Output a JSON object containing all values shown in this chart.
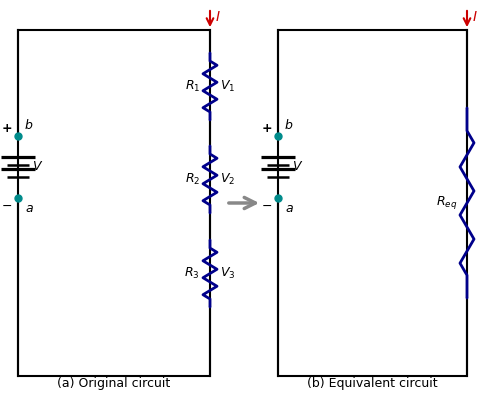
{
  "circuit_a_label": "(a) Original circuit",
  "circuit_b_label": "(b) Equivalent circuit",
  "wire_color": "black",
  "resistor_color": "#00008B",
  "battery_color": "black",
  "dot_color": "#008B8B",
  "current_arrow_color": "#CC0000",
  "arrow_color": "#888888",
  "bg_color": "#ffffff",
  "box_edge_color": "black",
  "V_source_label": "V",
  "b_label": "b",
  "a_label": "a",
  "I_label": "I",
  "plus_label": "+",
  "minus_label": "-"
}
